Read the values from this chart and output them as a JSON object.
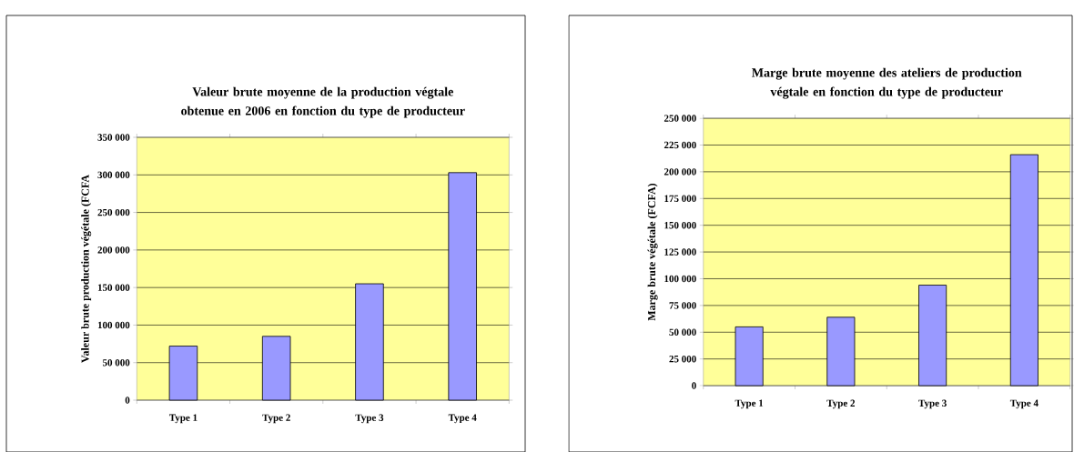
{
  "chart_data": [
    {
      "type": "bar",
      "title": "Valeur brute moyenne de la production végtale obtenue en 2006 en fonction du type de producteur",
      "ylabel": "Valeur brute production végétale (FCFA",
      "categories": [
        "Type 1",
        "Type 2",
        "Type 3",
        "Type 4"
      ],
      "values": [
        72000,
        85000,
        155000,
        303000
      ],
      "color": "#9999ff",
      "ylim": [
        0,
        350000
      ],
      "yticks": [
        {
          "value": 0,
          "label": "0"
        },
        {
          "value": 50000,
          "label": "50 000"
        },
        {
          "value": 100000,
          "label": "100 000"
        },
        {
          "value": 150000,
          "label": "150 000"
        },
        {
          "value": 200000,
          "label": "200 000"
        },
        {
          "value": 250000,
          "label": "250 000"
        },
        {
          "value": 300000,
          "label": "300 000"
        },
        {
          "value": 350000,
          "label": "350 000"
        }
      ],
      "grid": "y"
    },
    {
      "type": "bar",
      "title": "Marge brute moyenne des ateliers de production végtale en fonction du type de producteur",
      "ylabel": "Marge brute végétale (FCFA)",
      "categories": [
        "Type 1",
        "Type 2",
        "Type 3",
        "Type 4"
      ],
      "values": [
        55000,
        64000,
        94000,
        216000
      ],
      "color": "#9999ff",
      "ylim": [
        0,
        250000
      ],
      "yticks": [
        {
          "value": 0,
          "label": "0"
        },
        {
          "value": 25000,
          "label": "25 000"
        },
        {
          "value": 50000,
          "label": "50 000"
        },
        {
          "value": 75000,
          "label": "75 000"
        },
        {
          "value": 100000,
          "label": "100 000"
        },
        {
          "value": 125000,
          "label": "125 000"
        },
        {
          "value": 150000,
          "label": "150 000"
        },
        {
          "value": 175000,
          "label": "175 000"
        },
        {
          "value": 200000,
          "label": "200 000"
        },
        {
          "value": 225000,
          "label": "225 000"
        },
        {
          "value": 250000,
          "label": "250 000"
        }
      ],
      "grid": "y"
    }
  ]
}
